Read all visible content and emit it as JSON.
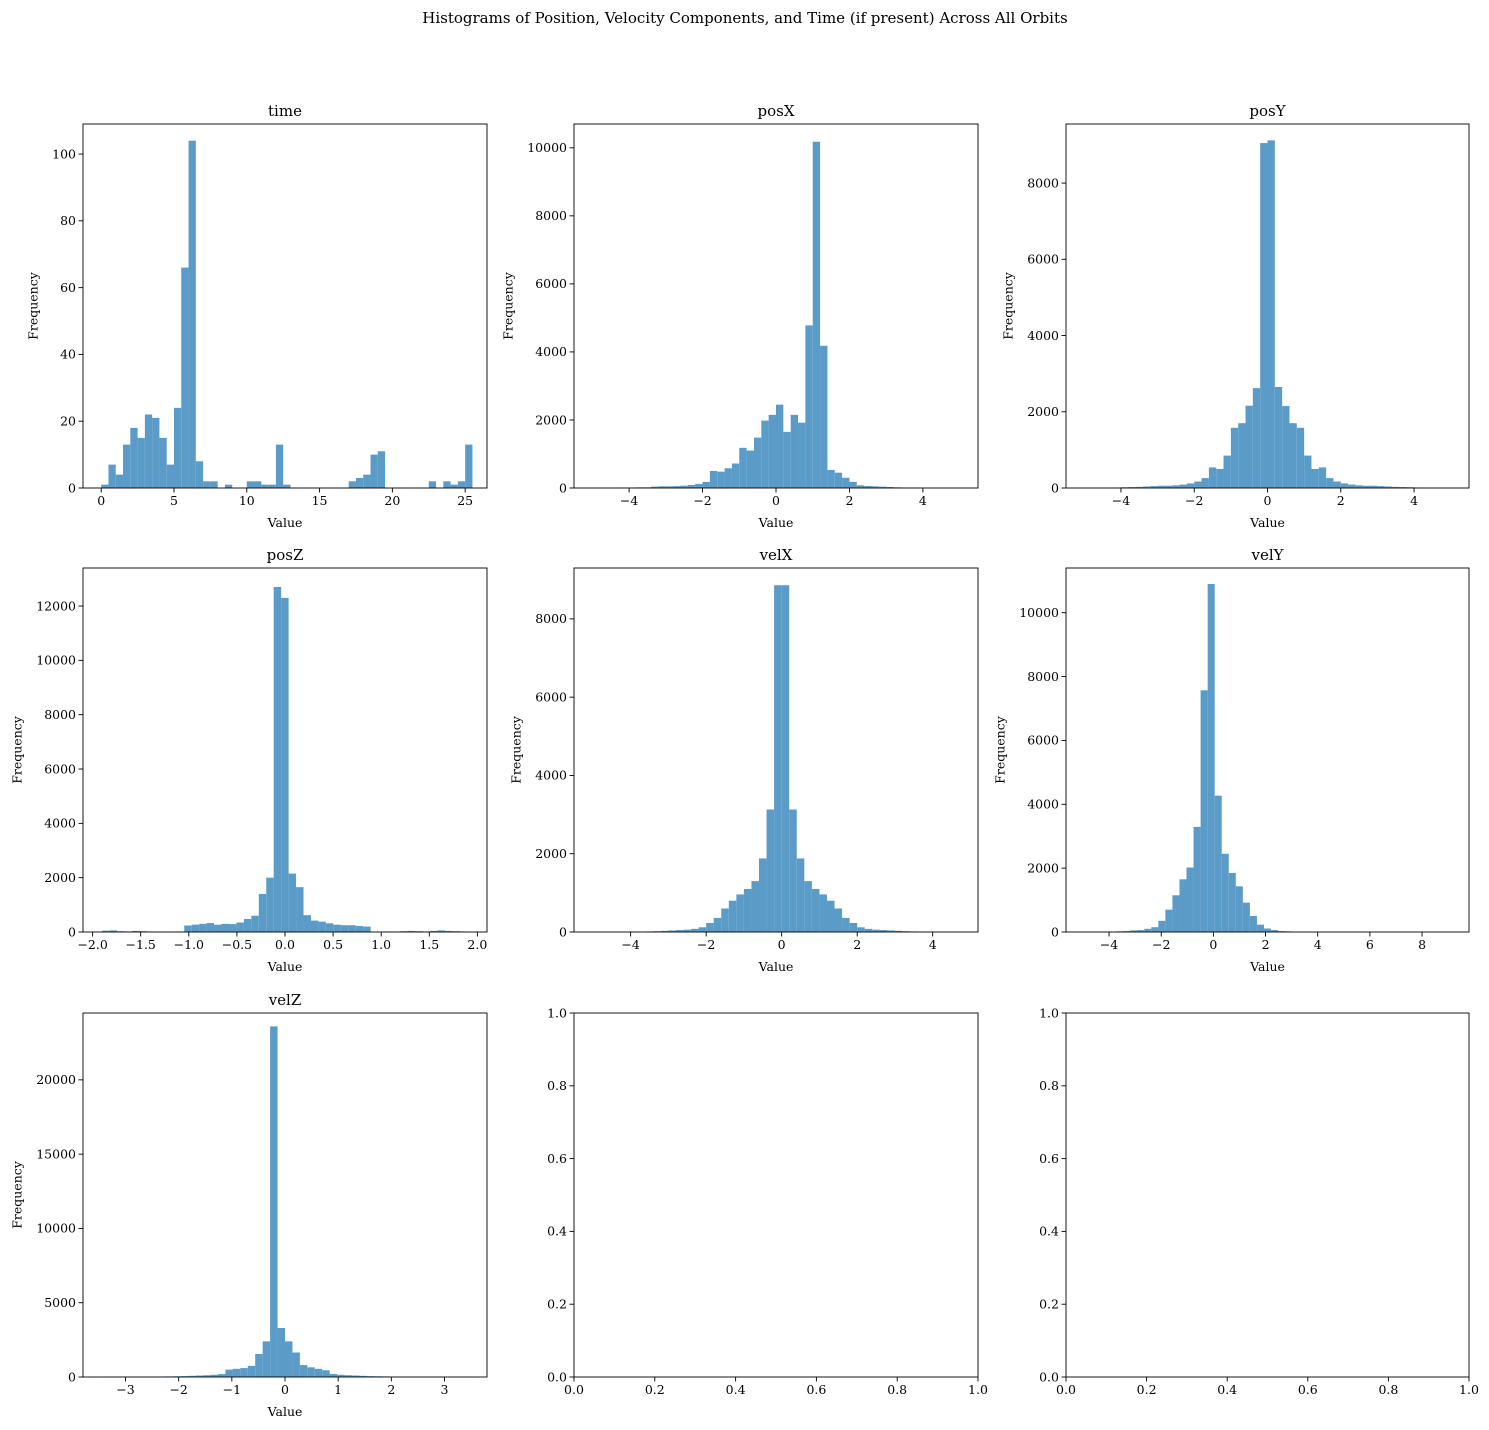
{
  "suptitle": "Histograms of Position, Velocity Components, and Time (if present) Across All Orbits",
  "colors": {
    "bar": "#5a9bc8",
    "axis": "#000000"
  },
  "chart_data": [
    {
      "type": "bar",
      "title": "time",
      "xlabel": "Value",
      "ylabel": "Frequency",
      "xlim": [
        -1.25,
        26.5
      ],
      "ylim": [
        0,
        109
      ],
      "xticks": [
        0,
        5,
        10,
        15,
        20,
        25
      ],
      "yticks": [
        0,
        20,
        40,
        60,
        80,
        100
      ],
      "bin_start": 0,
      "bin_width": 0.5,
      "values": [
        1,
        7,
        4,
        13,
        18,
        15,
        22,
        21,
        15,
        7,
        24,
        66,
        104,
        8,
        2,
        2,
        0,
        1,
        0,
        0,
        2,
        2,
        1,
        1,
        13,
        1,
        0,
        0,
        0,
        0,
        0,
        0,
        0,
        0,
        2,
        3,
        4,
        10,
        11,
        0,
        0,
        0,
        0,
        0,
        0,
        2,
        0,
        2,
        1,
        2,
        13
      ]
    },
    {
      "type": "bar",
      "title": "posX",
      "xlabel": "Value",
      "ylabel": "Frequency",
      "xlim": [
        -5.5,
        5.5
      ],
      "ylim": [
        0,
        10700
      ],
      "xticks": [
        -4,
        -2,
        0,
        2,
        4
      ],
      "yticks": [
        0,
        2000,
        4000,
        6000,
        8000,
        10000
      ],
      "bin_start": -4.2,
      "bin_width": 0.2,
      "values": [
        10,
        15,
        20,
        20,
        40,
        50,
        50,
        55,
        70,
        90,
        120,
        180,
        500,
        480,
        580,
        720,
        1180,
        1100,
        1480,
        1980,
        2150,
        2450,
        1650,
        2150,
        1920,
        4780,
        10180,
        4180,
        530,
        450,
        300,
        180,
        80,
        60,
        50,
        40,
        30,
        20,
        15,
        10,
        5
      ]
    },
    {
      "type": "bar",
      "title": "posY",
      "xlabel": "Value",
      "ylabel": "Frequency",
      "xlim": [
        -5.5,
        5.5
      ],
      "ylim": [
        0,
        9550
      ],
      "xticks": [
        -4,
        -2,
        0,
        2,
        4
      ],
      "yticks": [
        0,
        2000,
        4000,
        6000,
        8000
      ],
      "bin_start": -4.2,
      "bin_width": 0.2,
      "values": [
        10,
        20,
        25,
        30,
        40,
        50,
        60,
        60,
        70,
        90,
        120,
        170,
        260,
        540,
        500,
        850,
        1580,
        1700,
        2160,
        2620,
        9050,
        9120,
        2650,
        2150,
        1700,
        1580,
        850,
        500,
        540,
        260,
        170,
        120,
        90,
        70,
        60,
        60,
        50,
        40,
        30,
        25,
        20,
        10
      ]
    },
    {
      "type": "bar",
      "title": "posZ",
      "xlabel": "Value",
      "ylabel": "Frequency",
      "xlim": [
        -2.1,
        2.1
      ],
      "ylim": [
        0,
        13400
      ],
      "xticks": [
        -2.0,
        -1.5,
        -1.0,
        -0.5,
        0.0,
        0.5,
        1.0,
        1.5,
        2.0
      ],
      "xticklabels": [
        "−2.0",
        "−1.5",
        "−1.0",
        "−0.5",
        "0.0",
        "0.5",
        "1.0",
        "1.5",
        "2.0"
      ],
      "yticks": [
        0,
        2000,
        4000,
        6000,
        8000,
        10000,
        12000
      ],
      "bin_start": -1.9,
      "bin_width": 0.0775,
      "values": [
        50,
        60,
        30,
        20,
        40,
        30,
        10,
        15,
        10,
        10,
        20,
        240,
        270,
        300,
        330,
        270,
        300,
        290,
        350,
        480,
        600,
        1400,
        2000,
        12700,
        12300,
        2150,
        1650,
        620,
        420,
        380,
        320,
        270,
        250,
        250,
        220,
        200,
        10,
        10,
        20,
        20,
        30,
        40,
        30,
        20,
        40,
        60,
        40,
        30,
        20
      ]
    },
    {
      "type": "bar",
      "title": "velX",
      "xlabel": "Value",
      "ylabel": "Frequency",
      "xlim": [
        -5.5,
        5.2
      ],
      "ylim": [
        0,
        9300
      ],
      "xticks": [
        -4,
        -2,
        0,
        2,
        4
      ],
      "yticks": [
        0,
        2000,
        4000,
        6000,
        8000
      ],
      "bin_start": -4.2,
      "bin_width": 0.2,
      "values": [
        5,
        8,
        10,
        15,
        20,
        30,
        40,
        50,
        60,
        80,
        120,
        230,
        360,
        600,
        800,
        960,
        1100,
        1300,
        1880,
        3130,
        8860,
        8860,
        3130,
        1880,
        1300,
        1100,
        960,
        800,
        600,
        360,
        230,
        120,
        80,
        60,
        50,
        40,
        30,
        20,
        15,
        10,
        8,
        5
      ]
    },
    {
      "type": "bar",
      "title": "velY",
      "xlabel": "Value",
      "ylabel": "Frequency",
      "xlim": [
        -5.65,
        9.8
      ],
      "ylim": [
        0,
        11400
      ],
      "xticks": [
        -4,
        -2,
        0,
        2,
        4,
        6,
        8
      ],
      "yticks": [
        0,
        2000,
        4000,
        6000,
        8000,
        10000
      ],
      "bin_start": -4.0,
      "bin_width": 0.27,
      "values": [
        10,
        20,
        30,
        50,
        60,
        100,
        150,
        350,
        700,
        1150,
        1650,
        2020,
        3290,
        7570,
        10900,
        4270,
        2450,
        1850,
        1430,
        920,
        500,
        230,
        110,
        60,
        30,
        20,
        10,
        5,
        5,
        5,
        3,
        3,
        2
      ]
    },
    {
      "type": "bar",
      "title": "velZ",
      "xlabel": "Value",
      "ylabel": "Frequency",
      "xlim": [
        -3.8,
        3.8
      ],
      "ylim": [
        0,
        24500
      ],
      "xticks": [
        -3,
        -2,
        -1,
        0,
        1,
        2,
        3
      ],
      "yticks": [
        0,
        5000,
        10000,
        15000,
        20000
      ],
      "bin_start": -3.5,
      "bin_width": 0.14,
      "values": [
        10,
        10,
        10,
        10,
        10,
        10,
        10,
        20,
        30,
        40,
        50,
        60,
        80,
        100,
        120,
        150,
        200,
        500,
        550,
        600,
        750,
        1550,
        2400,
        23600,
        3300,
        2400,
        1650,
        800,
        650,
        550,
        450,
        200,
        150,
        120,
        100,
        80,
        60,
        50,
        40,
        30,
        20,
        15,
        10,
        10,
        10,
        10,
        10,
        10,
        10,
        10
      ]
    },
    {
      "type": "empty",
      "xlim": [
        0,
        1
      ],
      "ylim": [
        0,
        1
      ],
      "xticks": [
        0.0,
        0.2,
        0.4,
        0.6,
        0.8,
        1.0
      ],
      "yticks": [
        0.0,
        0.2,
        0.4,
        0.6,
        0.8,
        1.0
      ],
      "xticklabels": [
        "0.0",
        "0.2",
        "0.4",
        "0.6",
        "0.8",
        "1.0"
      ],
      "yticklabels": [
        "0.0",
        "0.2",
        "0.4",
        "0.6",
        "0.8",
        "1.0"
      ]
    },
    {
      "type": "empty",
      "xlim": [
        0,
        1
      ],
      "ylim": [
        0,
        1
      ],
      "xticks": [
        0.0,
        0.2,
        0.4,
        0.6,
        0.8,
        1.0
      ],
      "yticks": [
        0.0,
        0.2,
        0.4,
        0.6,
        0.8,
        1.0
      ],
      "xticklabels": [
        "0.0",
        "0.2",
        "0.4",
        "0.6",
        "0.8",
        "1.0"
      ],
      "yticklabels": [
        "0.0",
        "0.2",
        "0.4",
        "0.6",
        "0.8",
        "1.0"
      ]
    }
  ]
}
